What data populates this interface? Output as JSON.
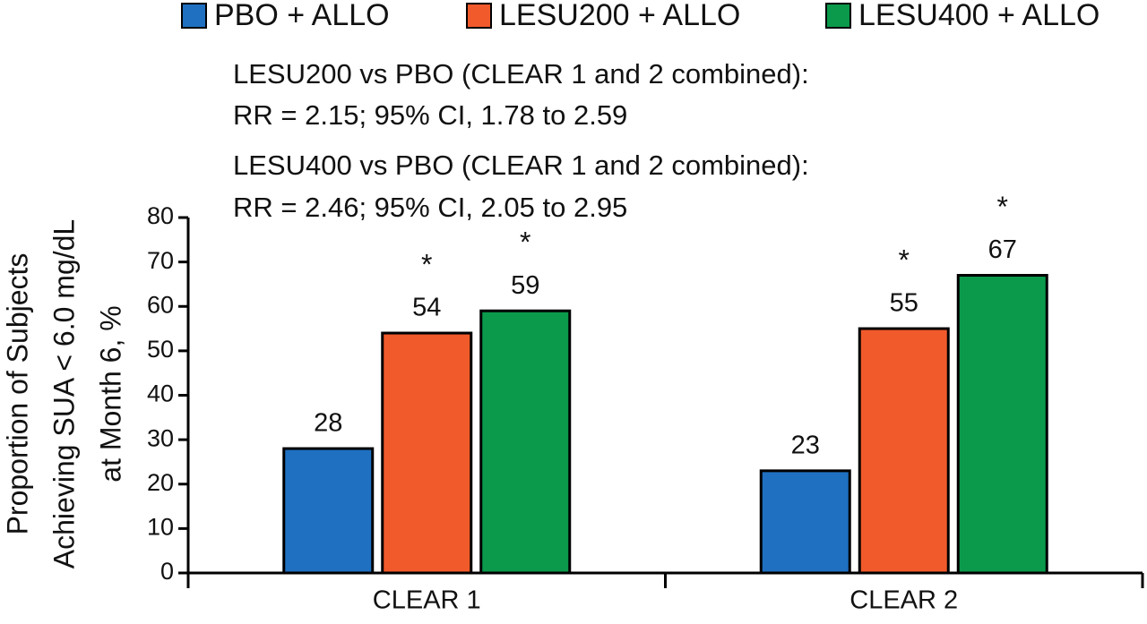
{
  "chart_data": {
    "type": "bar",
    "ylabel": [
      "Proportion of Subjects",
      "Achieving SUA < 6.0 mg/dL",
      "at Month 6, %"
    ],
    "annotations": [
      "LESU200 vs PBO (CLEAR 1 and 2 combined):",
      "RR = 2.15; 95% CI, 1.78 to 2.59",
      "LESU400 vs PBO (CLEAR 1 and 2 combined):",
      "RR = 2.46; 95% CI, 2.05 to 2.95"
    ],
    "categories": [
      "CLEAR 1",
      "CLEAR 2"
    ],
    "series": [
      {
        "name": "PBO + ALLO",
        "color": "#1f70c1",
        "values": [
          28,
          23
        ],
        "markers": [
          null,
          null
        ]
      },
      {
        "name": "LESU200 + ALLO",
        "color": "#f15a2b",
        "values": [
          54,
          55
        ],
        "markers": [
          "*",
          "*"
        ]
      },
      {
        "name": "LESU400 + ALLO",
        "color": "#0b9a4b",
        "values": [
          59,
          67
        ],
        "markers": [
          "*",
          "*"
        ]
      }
    ],
    "ylim": [
      0,
      80
    ],
    "yticks": [
      0,
      10,
      20,
      30,
      40,
      50,
      60,
      70,
      80
    ],
    "grid": false,
    "legend": "top"
  }
}
